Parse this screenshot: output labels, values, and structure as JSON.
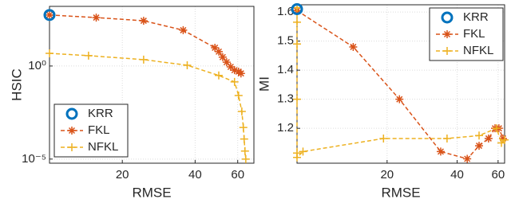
{
  "chart_data": [
    {
      "type": "line",
      "x_label": "RMSE",
      "y_label": "HSIC",
      "xscale": "log",
      "yscale": "log",
      "grid": true,
      "legend": "lower left",
      "xlim": [
        10,
        70
      ],
      "ylim": [
        6e-06,
        1600
      ],
      "xticks": [
        20,
        40,
        60
      ],
      "yticks": [
        {
          "value": 1e-05,
          "label": "10⁻⁵"
        },
        {
          "value": 1,
          "label": "10⁰"
        }
      ],
      "series": [
        {
          "name": "KRR",
          "color": "#0072bd",
          "marker": "o",
          "x": [
            10
          ],
          "values": [
            550
          ]
        },
        {
          "name": "FKL",
          "color": "#d95319",
          "marker": "*",
          "x": [
            10,
            15.6,
            24.5,
            35.7,
            48.3,
            50.1,
            52,
            54,
            56.1,
            58.2,
            60.5,
            61.9
          ],
          "values": [
            550,
            400,
            270,
            84,
            9.6,
            5.9,
            3,
            1.6,
            0.9,
            0.6,
            0.5,
            0.4
          ]
        },
        {
          "name": "NFKL",
          "color": "#edb120",
          "marker": "+",
          "x": [
            10,
            14.5,
            24.5,
            37.1,
            50.1,
            58.2,
            60.5,
            62.4,
            63.3,
            63.8,
            64.3,
            64.8
          ],
          "values": [
            4.8,
            3.6,
            2.2,
            1.1,
            0.31,
            0.14,
            0.026,
            0.0036,
            0.0005,
            0.00012,
            2.7e-05,
            1e-05
          ]
        }
      ]
    },
    {
      "type": "line",
      "x_label": "RMSE",
      "y_label": "MI",
      "xscale": "log",
      "yscale": "linear",
      "grid": true,
      "legend": "upper right",
      "xlim": [
        8.2,
        64
      ],
      "ylim": [
        1.08,
        1.625
      ],
      "xticks": [
        20,
        40,
        60
      ],
      "yticks": [
        1.2,
        1.3,
        1.4,
        1.5,
        1.6
      ],
      "series": [
        {
          "name": "KRR",
          "color": "#0072bd",
          "marker": "o",
          "x": [
            8.2
          ],
          "values": [
            1.61
          ]
        },
        {
          "name": "FKL",
          "color": "#d95319",
          "marker": "*",
          "x": [
            8.2,
            14.3,
            22.6,
            34,
            44.2,
            49.7,
            54.6,
            58.2,
            60.5,
            63
          ],
          "values": [
            1.605,
            1.48,
            1.3,
            1.12,
            1.095,
            1.14,
            1.165,
            1.2,
            1.2,
            1.165
          ]
        },
        {
          "name": "NFKL",
          "color": "#edb120",
          "marker": "+",
          "x": [
            8.2,
            8.2,
            8.2,
            8.2,
            8.2,
            8.2,
            8.7,
            19.3,
            36.2,
            49.7,
            59.1,
            62,
            64
          ],
          "values": [
            1.615,
            1.565,
            1.49,
            1.3,
            1.115,
            1.1,
            1.12,
            1.165,
            1.165,
            1.175,
            1.2,
            1.15,
            1.16
          ]
        }
      ]
    }
  ]
}
